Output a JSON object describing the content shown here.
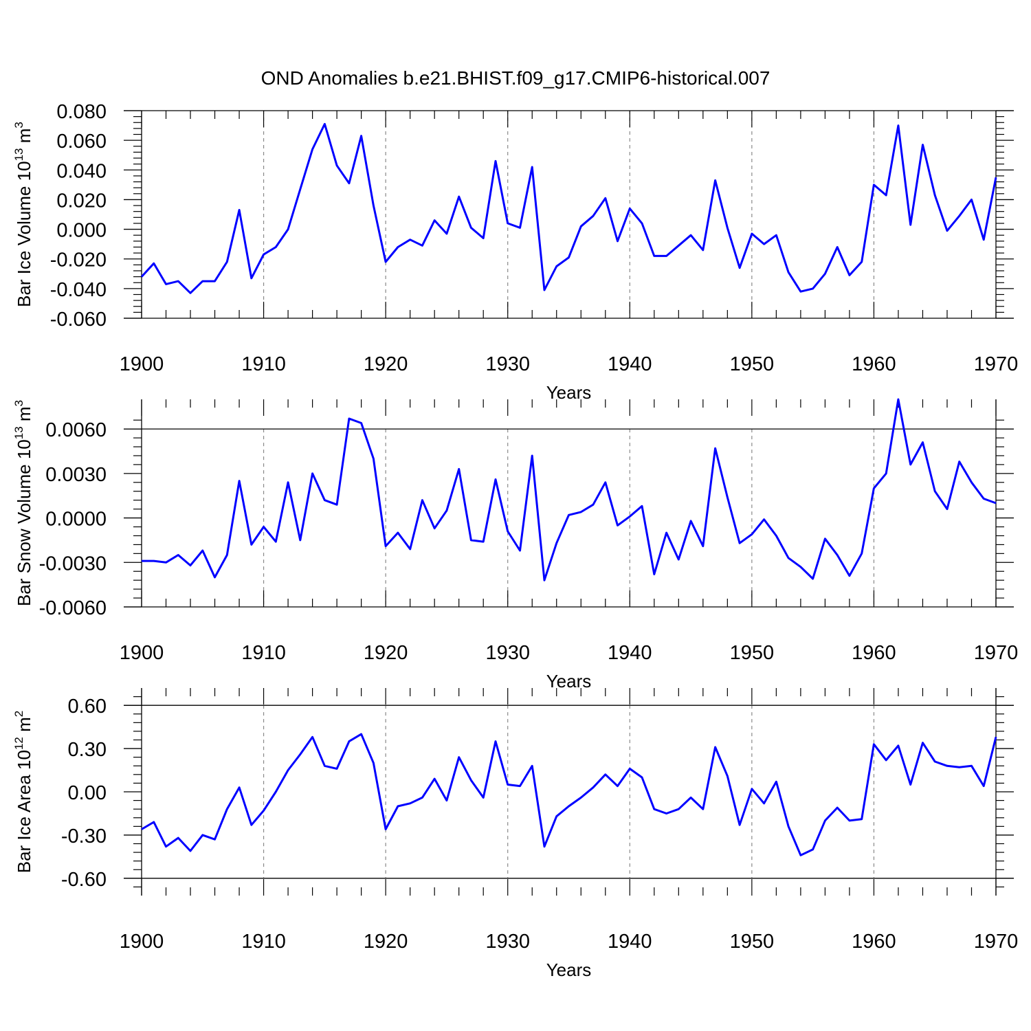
{
  "title": "OND Anomalies b.e21.BHIST.f09_g17.CMIP6-historical.007",
  "line_color": "#0000ff",
  "chart_data": [
    {
      "type": "line",
      "xlabel": "Years",
      "ylabel": "Bar Ice Volume 10",
      "ylabel_sup": "13",
      "ylabel_unit": " m",
      "ylabel_unit_sup": "3",
      "xlim": [
        1900,
        1970
      ],
      "ylim": [
        -0.06,
        0.08
      ],
      "xticks": [
        1900,
        1910,
        1920,
        1930,
        1940,
        1950,
        1960,
        1970
      ],
      "xtick_labels": [
        "1900",
        "1910",
        "1920",
        "1930",
        "1940",
        "1950",
        "1960",
        "1970"
      ],
      "yticks": [
        -0.06,
        -0.04,
        -0.02,
        0,
        0.02,
        0.04,
        0.06,
        0.08
      ],
      "ytick_labels": [
        "-0.060",
        "-0.040",
        "-0.020",
        "0.000",
        "0.020",
        "0.040",
        "0.060",
        "0.080"
      ],
      "grid": "dashed vertical at decades",
      "x": [
        1900,
        1901,
        1902,
        1903,
        1904,
        1905,
        1906,
        1907,
        1908,
        1909,
        1910,
        1911,
        1912,
        1913,
        1914,
        1915,
        1916,
        1917,
        1918,
        1919,
        1920,
        1921,
        1922,
        1923,
        1924,
        1925,
        1926,
        1927,
        1928,
        1929,
        1930,
        1931,
        1932,
        1933,
        1934,
        1935,
        1936,
        1937,
        1938,
        1939,
        1940,
        1941,
        1942,
        1943,
        1944,
        1945,
        1946,
        1947,
        1948,
        1949,
        1950,
        1951,
        1952,
        1953,
        1954,
        1955,
        1956,
        1957,
        1958,
        1959,
        1960,
        1961,
        1962,
        1963,
        1964,
        1965,
        1966,
        1967,
        1968,
        1969,
        1970
      ],
      "y": [
        -0.032,
        -0.023,
        -0.037,
        -0.035,
        -0.043,
        -0.035,
        -0.035,
        -0.022,
        0.013,
        -0.033,
        -0.017,
        -0.012,
        0.0,
        0.027,
        0.054,
        0.071,
        0.043,
        0.031,
        0.063,
        0.016,
        -0.022,
        -0.012,
        -0.007,
        -0.011,
        0.006,
        -0.003,
        0.022,
        0.001,
        -0.006,
        0.046,
        0.004,
        0.001,
        0.042,
        -0.041,
        -0.025,
        -0.019,
        0.002,
        0.009,
        0.021,
        -0.008,
        0.014,
        0.004,
        -0.018,
        -0.018,
        -0.011,
        -0.004,
        -0.014,
        0.033,
        0.001,
        -0.026,
        -0.003,
        -0.01,
        -0.004,
        -0.029,
        -0.042,
        -0.04,
        -0.03,
        -0.012,
        -0.031,
        -0.022,
        0.03,
        0.023,
        0.07,
        0.003,
        0.057,
        0.023,
        -0.001,
        0.009,
        0.02,
        -0.007,
        0.035
      ]
    },
    {
      "type": "line",
      "xlabel": "Years",
      "ylabel": "Bar Snow Volume 10",
      "ylabel_sup": "13",
      "ylabel_unit": " m",
      "ylabel_unit_sup": "3",
      "xlim": [
        1900,
        1970
      ],
      "ylim": [
        -0.006,
        0.008
      ],
      "xticks": [
        1900,
        1910,
        1920,
        1930,
        1940,
        1950,
        1960,
        1970
      ],
      "xtick_labels": [
        "1900",
        "1910",
        "1920",
        "1930",
        "1940",
        "1950",
        "1960",
        "1970"
      ],
      "yticks": [
        -0.006,
        -0.003,
        0,
        0.003,
        0.006
      ],
      "ytick_labels": [
        "-0.0060",
        "-0.0030",
        "0.0000",
        "0.0030",
        "0.0060"
      ],
      "grid": "dashed vertical at decades",
      "x": [
        1900,
        1901,
        1902,
        1903,
        1904,
        1905,
        1906,
        1907,
        1908,
        1909,
        1910,
        1911,
        1912,
        1913,
        1914,
        1915,
        1916,
        1917,
        1918,
        1919,
        1920,
        1921,
        1922,
        1923,
        1924,
        1925,
        1926,
        1927,
        1928,
        1929,
        1930,
        1931,
        1932,
        1933,
        1934,
        1935,
        1936,
        1937,
        1938,
        1939,
        1940,
        1941,
        1942,
        1943,
        1944,
        1945,
        1946,
        1947,
        1948,
        1949,
        1950,
        1951,
        1952,
        1953,
        1954,
        1955,
        1956,
        1957,
        1958,
        1959,
        1960,
        1961,
        1962,
        1963,
        1964,
        1965,
        1966,
        1967,
        1968,
        1969,
        1970
      ],
      "y": [
        -0.0029,
        -0.0029,
        -0.003,
        -0.0025,
        -0.0032,
        -0.0022,
        -0.004,
        -0.0025,
        0.0025,
        -0.0018,
        -0.0006,
        -0.0016,
        0.0024,
        -0.0015,
        0.003,
        0.0012,
        0.0009,
        0.0067,
        0.0064,
        0.004,
        -0.0019,
        -0.001,
        -0.0021,
        0.0012,
        -0.0007,
        0.0005,
        0.0033,
        -0.0015,
        -0.0016,
        0.0026,
        -0.0009,
        -0.0022,
        0.0042,
        -0.0042,
        -0.0017,
        0.0002,
        0.0004,
        0.0009,
        0.0024,
        -0.0005,
        0.0001,
        0.0008,
        -0.0038,
        -0.001,
        -0.0028,
        -0.0002,
        -0.0019,
        0.0047,
        0.0014,
        -0.0017,
        -0.0011,
        -0.0001,
        -0.0012,
        -0.0027,
        -0.0033,
        -0.0041,
        -0.0014,
        -0.0025,
        -0.0039,
        -0.0024,
        0.002,
        0.003,
        0.008,
        0.0036,
        0.0051,
        0.0018,
        0.0006,
        0.0038,
        0.0024,
        0.0013,
        0.001
      ]
    },
    {
      "type": "line",
      "xlabel": "Years",
      "ylabel": "Bar Ice Area 10",
      "ylabel_sup": "12",
      "ylabel_unit": " m",
      "ylabel_unit_sup": "2",
      "xlim": [
        1900,
        1970
      ],
      "ylim": [
        -0.72,
        0.72
      ],
      "xticks": [
        1900,
        1910,
        1920,
        1930,
        1940,
        1950,
        1960,
        1970
      ],
      "xtick_labels": [
        "1900",
        "1910",
        "1920",
        "1930",
        "1940",
        "1950",
        "1960",
        "1970"
      ],
      "yticks": [
        -0.6,
        -0.3,
        0,
        0.3,
        0.6
      ],
      "ytick_labels": [
        "-0.60",
        "-0.30",
        "0.00",
        "0.30",
        "0.60"
      ],
      "grid": "dashed vertical at decades",
      "x": [
        1900,
        1901,
        1902,
        1903,
        1904,
        1905,
        1906,
        1907,
        1908,
        1909,
        1910,
        1911,
        1912,
        1913,
        1914,
        1915,
        1916,
        1917,
        1918,
        1919,
        1920,
        1921,
        1922,
        1923,
        1924,
        1925,
        1926,
        1927,
        1928,
        1929,
        1930,
        1931,
        1932,
        1933,
        1934,
        1935,
        1936,
        1937,
        1938,
        1939,
        1940,
        1941,
        1942,
        1943,
        1944,
        1945,
        1946,
        1947,
        1948,
        1949,
        1950,
        1951,
        1952,
        1953,
        1954,
        1955,
        1956,
        1957,
        1958,
        1959,
        1960,
        1961,
        1962,
        1963,
        1964,
        1965,
        1966,
        1967,
        1968,
        1969,
        1970
      ],
      "y": [
        -0.26,
        -0.21,
        -0.38,
        -0.32,
        -0.41,
        -0.3,
        -0.33,
        -0.12,
        0.03,
        -0.23,
        -0.13,
        0.0,
        0.15,
        0.26,
        0.38,
        0.18,
        0.16,
        0.35,
        0.4,
        0.2,
        -0.26,
        -0.1,
        -0.08,
        -0.04,
        0.09,
        -0.06,
        0.24,
        0.08,
        -0.04,
        0.35,
        0.05,
        0.04,
        0.18,
        -0.38,
        -0.17,
        -0.1,
        -0.04,
        0.03,
        0.12,
        0.04,
        0.16,
        0.1,
        -0.12,
        -0.15,
        -0.12,
        -0.04,
        -0.12,
        0.31,
        0.11,
        -0.23,
        0.02,
        -0.08,
        0.07,
        -0.24,
        -0.44,
        -0.4,
        -0.2,
        -0.11,
        -0.2,
        -0.19,
        0.33,
        0.22,
        0.32,
        0.05,
        0.34,
        0.21,
        0.18,
        0.17,
        0.18,
        0.04,
        0.38
      ]
    }
  ]
}
